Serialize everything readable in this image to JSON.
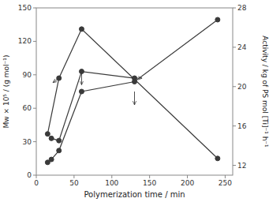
{
  "chart_data": {
    "type": "line",
    "x_label": "Polymerization time / min",
    "y_label": "Mw × 10⁵ / (g mol⁻¹)",
    "y2_label": "Activity / kg of PS mol [Ti]⁻¹ h⁻¹",
    "color": "#3a3a3a",
    "marker": "circle",
    "grid": false,
    "series": [
      {
        "x": [
          15,
          30,
          60,
          240
        ],
        "values": [
          37,
          87,
          131,
          15
        ],
        "axis": "y"
      },
      {
        "x": [
          20,
          30,
          60,
          130
        ],
        "values": [
          33,
          31,
          93,
          87
        ],
        "axis": "y"
      },
      {
        "x": [
          15,
          20,
          30,
          60,
          130,
          240
        ],
        "values": [
          12.3,
          12.6,
          13.5,
          19.5,
          20.5,
          26.8
        ],
        "axis": "y2"
      }
    ],
    "xlim": [
      0,
      260
    ],
    "xticks": [
      0,
      50,
      100,
      150,
      200,
      250
    ],
    "ylim": [
      0,
      150
    ],
    "yticks": [
      0,
      30,
      60,
      90,
      120,
      150
    ],
    "y2lim": [
      11,
      28
    ],
    "y2ticks": [
      12,
      16,
      20,
      24,
      28
    ],
    "annotations": [
      {
        "xy": [
          22,
          83
        ],
        "xytext": [
          30,
          87
        ]
      },
      {
        "xy": [
          60,
          81
        ],
        "xytext": [
          60,
          93
        ]
      },
      {
        "xy": [
          140,
          87
        ],
        "xytext": [
          131,
          87
        ]
      },
      {
        "xy": [
          130,
          63
        ],
        "xytext": [
          130,
          75
        ]
      }
    ]
  }
}
